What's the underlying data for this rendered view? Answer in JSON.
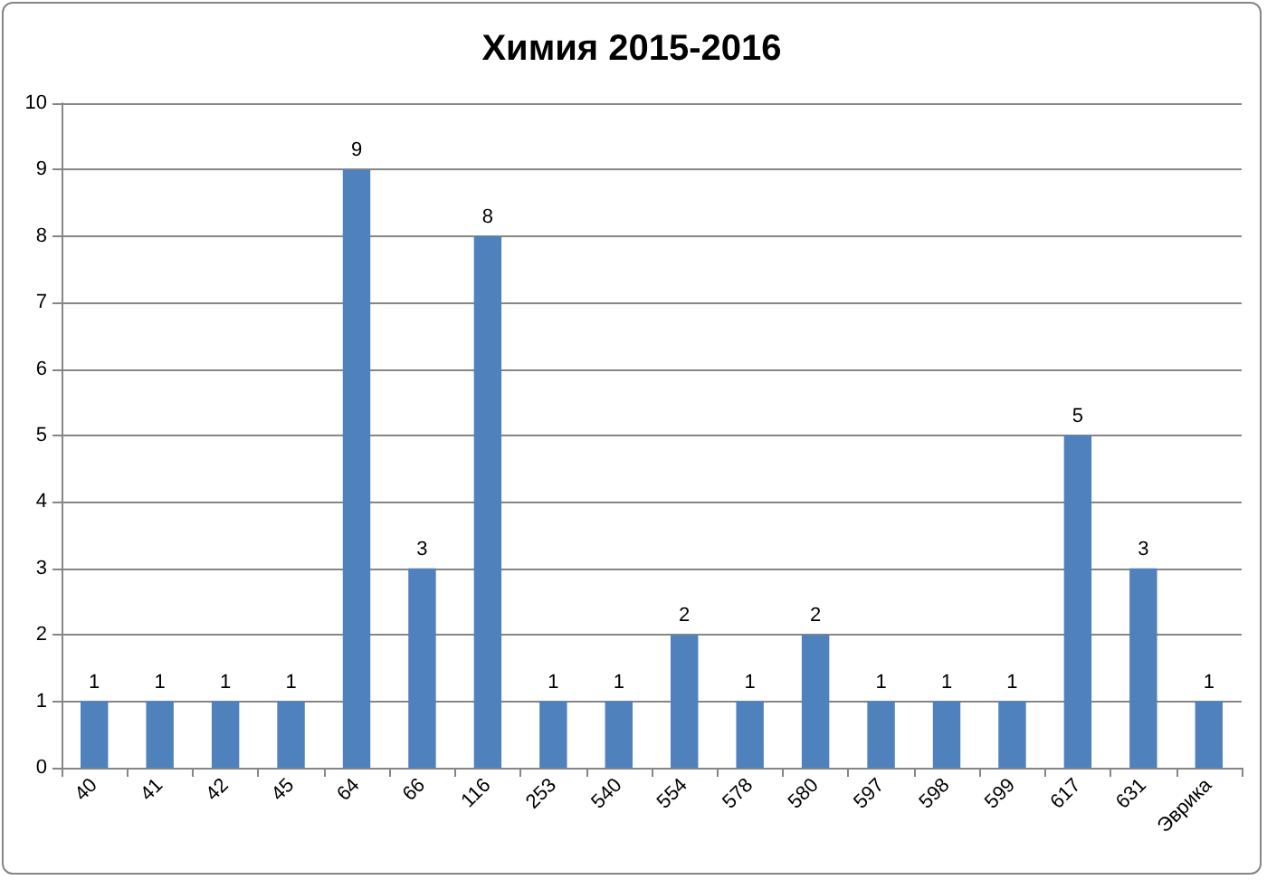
{
  "chart_data": {
    "type": "bar",
    "title": "Химия 2015-2016",
    "categories": [
      "40",
      "41",
      "42",
      "45",
      "64",
      "66",
      "116",
      "253",
      "540",
      "554",
      "578",
      "580",
      "597",
      "598",
      "599",
      "617",
      "631",
      "Эврика"
    ],
    "values": [
      1,
      1,
      1,
      1,
      9,
      3,
      8,
      1,
      1,
      2,
      1,
      2,
      1,
      1,
      1,
      5,
      3,
      1
    ],
    "color": "#4f81bd",
    "ylim": [
      0,
      10
    ],
    "yticks": [
      0,
      1,
      2,
      3,
      4,
      5,
      6,
      7,
      8,
      9,
      10
    ],
    "grid": "y",
    "data_labels": true
  }
}
